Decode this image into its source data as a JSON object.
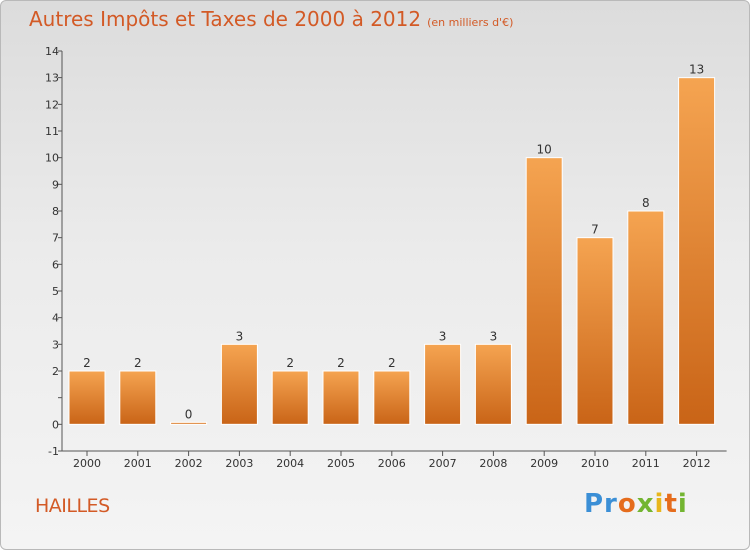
{
  "title": "Autres Impôts et Taxes de 2000 à 2012",
  "subtitle": "(en milliers d'€)",
  "commune": "HAILLES",
  "logo": {
    "p1": "Pr",
    "p2": "o",
    "p3": "x",
    "p4": "i",
    "p5": "t",
    "p6": "i"
  },
  "colors": {
    "bar_top": "#f5a451",
    "bar_bottom": "#c96417",
    "title": "#d35a26"
  },
  "chart_data": {
    "type": "bar",
    "title": "Autres Impôts et Taxes de 2000 à 2012",
    "subtitle": "(en milliers d'€)",
    "categories": [
      "2000",
      "2001",
      "2002",
      "2003",
      "2004",
      "2005",
      "2006",
      "2007",
      "2008",
      "2009",
      "2010",
      "2011",
      "2012"
    ],
    "values": [
      2,
      2,
      0,
      3,
      2,
      2,
      2,
      3,
      3,
      10,
      7,
      8,
      13
    ],
    "data_labels": [
      "2",
      "2",
      "0",
      "3",
      "2",
      "2",
      "2",
      "3",
      "3",
      "10",
      "7",
      "8",
      "13"
    ],
    "yticks": [
      -1,
      0,
      1,
      2,
      3,
      4,
      5,
      6,
      7,
      8,
      9,
      10,
      11,
      12,
      13,
      14
    ],
    "ytick_labels": [
      "-1",
      "0",
      "",
      "2",
      "3",
      "4",
      "5",
      "6",
      "7",
      "8",
      "9",
      "10",
      "11",
      "12",
      "13",
      "14"
    ],
    "ylim": [
      -1,
      14
    ],
    "xlabel": "",
    "ylabel": "",
    "grid": false,
    "legend": "none"
  }
}
